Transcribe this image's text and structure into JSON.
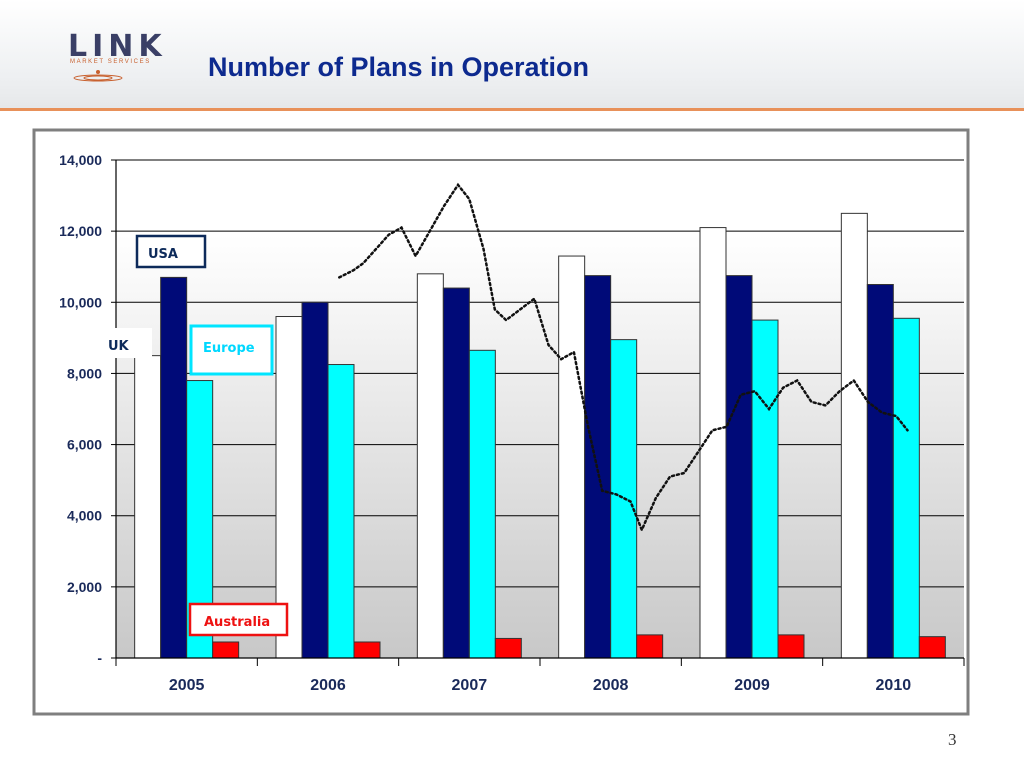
{
  "header": {
    "title": "Number of Plans in Operation",
    "logo_text": "LINK",
    "logo_subtext": "MARKET SERVICES"
  },
  "page_number": "3",
  "colors": {
    "uk": "#ffffff",
    "usa": "#000a78",
    "europe": "#00ffff",
    "australia": "#ff0000",
    "title": "#0d2a8f",
    "header_rule": "#e8915a"
  },
  "chart_data": {
    "type": "bar",
    "title": "",
    "xlabel": "",
    "ylabel": "",
    "categories": [
      "2005",
      "2006",
      "2007",
      "2008",
      "2009",
      "2010"
    ],
    "series": [
      {
        "name": "UK",
        "color": "#ffffff",
        "values": [
          8500,
          9600,
          10800,
          11300,
          12100,
          12500
        ]
      },
      {
        "name": "USA",
        "color": "#000a78",
        "values": [
          10700,
          10000,
          10400,
          10750,
          10750,
          10500
        ]
      },
      {
        "name": "Europe",
        "color": "#00ffff",
        "values": [
          7800,
          8250,
          8650,
          8950,
          9500,
          9550
        ]
      },
      {
        "name": "Australia",
        "color": "#ff0000",
        "values": [
          450,
          450,
          550,
          650,
          650,
          600
        ]
      }
    ],
    "ylim": [
      0,
      14000
    ],
    "yticks": [
      0,
      2000,
      4000,
      6000,
      8000,
      10000,
      12000,
      14000
    ],
    "ytick_labels": [
      "-",
      "2,000",
      "4,000",
      "6,000",
      "8,000",
      "10,000",
      "12,000",
      "14,000"
    ],
    "grid": true,
    "legend": "labels placed beside bars",
    "overlay": {
      "type": "line",
      "style": "dotted",
      "name": "",
      "x": [
        1.58,
        1.68,
        1.75,
        1.84,
        1.93,
        2.02,
        2.12,
        2.22,
        2.32,
        2.42,
        2.5,
        2.6,
        2.68,
        2.76,
        2.86,
        2.96,
        3.06,
        3.15,
        3.24,
        3.34,
        3.44,
        3.54,
        3.64,
        3.72,
        3.82,
        3.92,
        4.02,
        4.12,
        4.22,
        4.32,
        4.42,
        4.52,
        4.62,
        4.72,
        4.82,
        4.92,
        5.02,
        5.12,
        5.22,
        5.32,
        5.42,
        5.52,
        5.6
      ],
      "y": [
        10700,
        10900,
        11100,
        11500,
        11900,
        12100,
        11300,
        12000,
        12700,
        13300,
        12900,
        11500,
        9800,
        9500,
        9800,
        10100,
        8800,
        8400,
        8600,
        6500,
        4700,
        4600,
        4400,
        3600,
        4500,
        5100,
        5200,
        5800,
        6400,
        6500,
        7400,
        7500,
        7000,
        7600,
        7800,
        7200,
        7100,
        7500,
        7800,
        7200,
        6900,
        6800,
        6400
      ]
    }
  },
  "chart_labels": {
    "usa": "USA",
    "uk": "UK",
    "europe": "Europe",
    "australia": "Australia"
  }
}
